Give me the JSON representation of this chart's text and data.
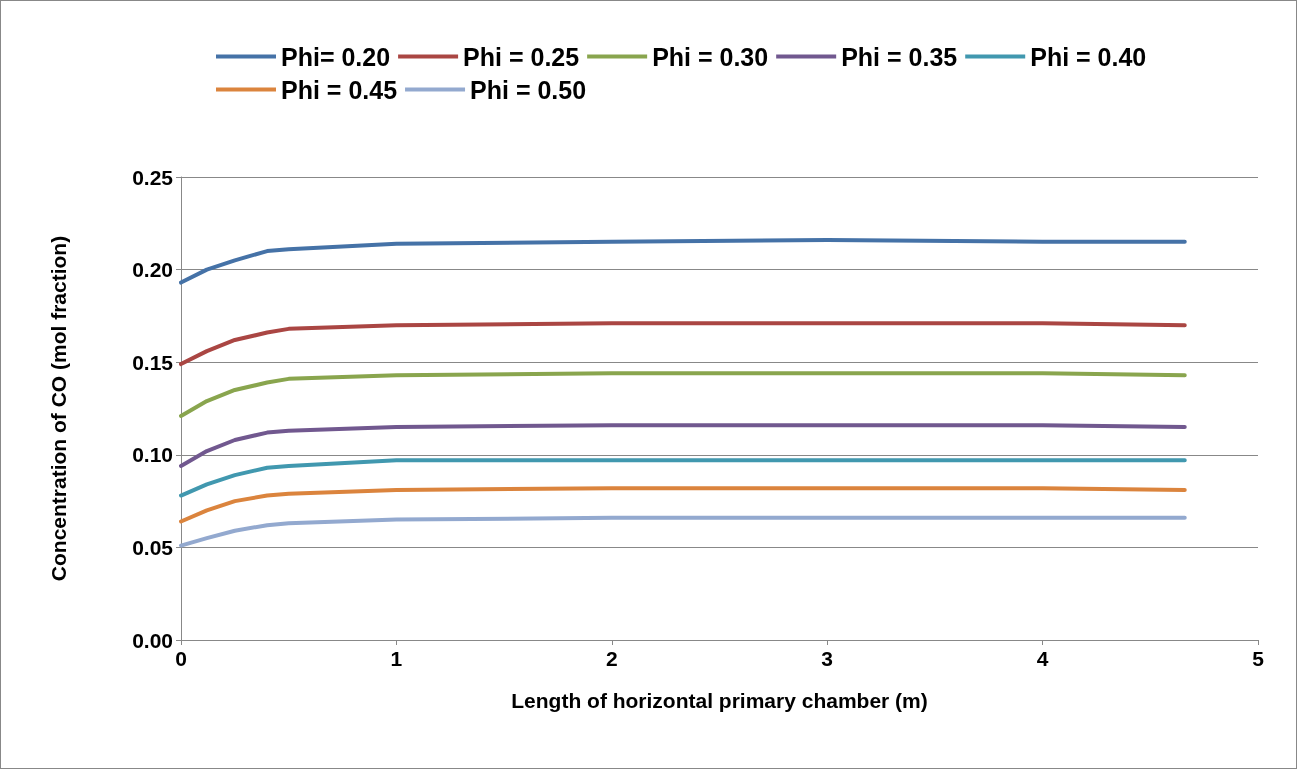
{
  "chart_data": {
    "type": "line",
    "xlabel": "Length of horizontal primary chamber (m)",
    "ylabel": "Concentration of CO (mol fraction)",
    "x": [
      0,
      0.12,
      0.25,
      0.4,
      0.5,
      1.0,
      2.0,
      3.0,
      4.0,
      4.66
    ],
    "series": [
      {
        "name": "Phi= 0.20",
        "color": "#4572a7",
        "values": [
          0.193,
          0.2,
          0.205,
          0.21,
          0.211,
          0.214,
          0.215,
          0.216,
          0.215,
          0.215
        ]
      },
      {
        "name": "Phi = 0.25",
        "color": "#aa4643",
        "values": [
          0.149,
          0.156,
          0.162,
          0.166,
          0.168,
          0.17,
          0.171,
          0.171,
          0.171,
          0.17
        ]
      },
      {
        "name": "Phi = 0.30",
        "color": "#89a54e",
        "values": [
          0.121,
          0.129,
          0.135,
          0.139,
          0.141,
          0.143,
          0.144,
          0.144,
          0.144,
          0.143
        ]
      },
      {
        "name": "Phi = 0.35",
        "color": "#71588f",
        "values": [
          0.094,
          0.102,
          0.108,
          0.112,
          0.113,
          0.115,
          0.116,
          0.116,
          0.116,
          0.115
        ]
      },
      {
        "name": "Phi = 0.40",
        "color": "#4198af",
        "values": [
          0.078,
          0.084,
          0.089,
          0.093,
          0.094,
          0.097,
          0.097,
          0.097,
          0.097,
          0.097
        ]
      },
      {
        "name": "Phi = 0.45",
        "color": "#db843d",
        "values": [
          0.064,
          0.07,
          0.075,
          0.078,
          0.079,
          0.081,
          0.082,
          0.082,
          0.082,
          0.081
        ]
      },
      {
        "name": "Phi = 0.50",
        "color": "#93a9cf",
        "values": [
          0.051,
          0.055,
          0.059,
          0.062,
          0.063,
          0.065,
          0.066,
          0.066,
          0.066,
          0.066
        ]
      }
    ],
    "xlim": [
      0,
      5
    ],
    "xticks": [
      0,
      1,
      2,
      3,
      4,
      5
    ],
    "ylim": [
      0,
      0.25
    ],
    "yticks": [
      {
        "value": 0,
        "label": "0.00"
      },
      {
        "value": 0.05,
        "label": "0.05"
      },
      {
        "value": 0.1,
        "label": "0.10"
      },
      {
        "value": 0.15,
        "label": "0.15"
      },
      {
        "value": 0.2,
        "label": "0.20"
      },
      {
        "value": 0.25,
        "label": "0.25"
      }
    ],
    "grid": "y",
    "legend": "top",
    "marker": "none",
    "line_style": "solid"
  }
}
